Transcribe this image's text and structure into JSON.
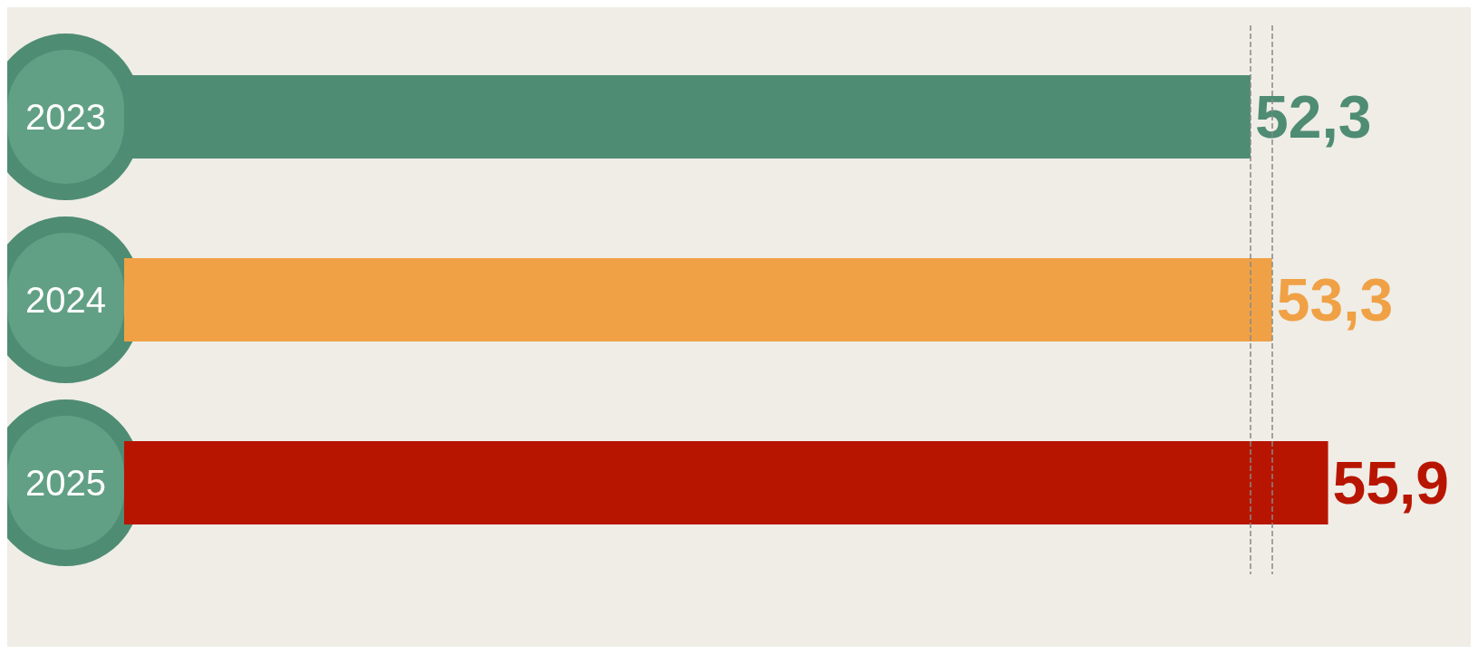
{
  "chart_data": {
    "type": "bar",
    "orientation": "horizontal",
    "categories": [
      "2023",
      "2024",
      "2025"
    ],
    "values": [
      52.3,
      53.3,
      55.9
    ],
    "colors": [
      "#4f8c74",
      "#f0a145",
      "#b81500"
    ],
    "value_labels": [
      "52,3",
      "53,3",
      "55,9"
    ],
    "tick_labels": "y",
    "grid": false,
    "ref_lines": [
      {
        "axis": "x",
        "value": 52.3,
        "color": "#888888",
        "line_style": "dashed"
      },
      {
        "axis": "x",
        "value": 53.3,
        "color": "#888888",
        "line_style": "dashed"
      }
    ]
  }
}
